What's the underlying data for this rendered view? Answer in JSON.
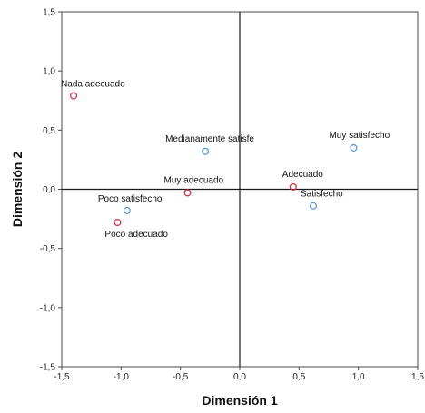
{
  "chart_data": {
    "type": "scatter",
    "xlabel": "Dimensión 1",
    "ylabel": "Dimensión 2",
    "xlim": [
      -1.5,
      1.5
    ],
    "ylim": [
      -1.5,
      1.5
    ],
    "xticks": [
      "-1,5",
      "-1,0",
      "-0,5",
      "0,0",
      "0,5",
      "1,0",
      "1,5"
    ],
    "yticks": [
      "1,5",
      "1,0",
      "0,5",
      "0,0",
      "-0,5",
      "-1,0",
      "-1,5"
    ],
    "grid": false,
    "reference_lines": {
      "x": 0,
      "y": 0
    },
    "series": [
      {
        "color": "#d4324a",
        "points": [
          {
            "label": "Nada adecuado",
            "x": -1.4,
            "y": 0.79
          },
          {
            "label": "Muy adecuado",
            "x": -0.44,
            "y": -0.03
          },
          {
            "label": "Adecuado",
            "x": 0.45,
            "y": 0.02
          },
          {
            "label": "Poco adecuado",
            "x": -1.03,
            "y": -0.28
          }
        ]
      },
      {
        "color": "#5b9bd5",
        "points": [
          {
            "label": "Medianamente satisfe",
            "x": -0.29,
            "y": 0.32
          },
          {
            "label": "Muy satisfecho",
            "x": 0.96,
            "y": 0.35
          },
          {
            "label": "Satisfecho",
            "x": 0.62,
            "y": -0.14
          },
          {
            "label": "Poco satisfecho",
            "x": -0.95,
            "y": -0.18
          }
        ]
      }
    ]
  }
}
